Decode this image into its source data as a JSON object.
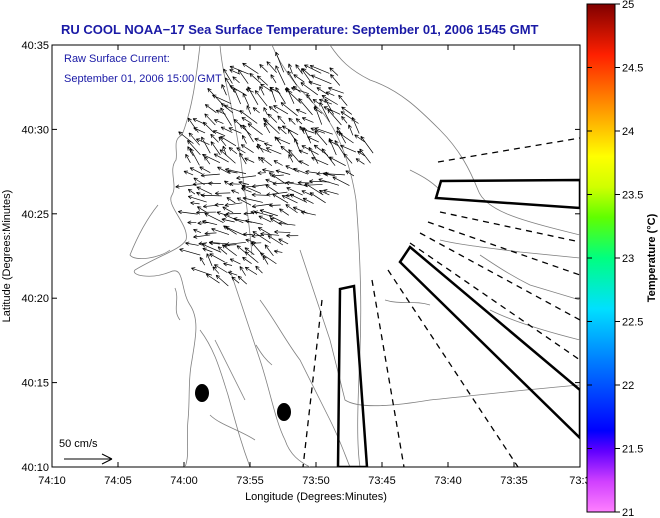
{
  "title": "RU COOL  NOAA−17  Sea Surface Temperature:  September 01, 2006 1545 GMT",
  "current_label": "Raw Surface Current:",
  "current_time": "September 01, 2006 15:00 GMT",
  "scale_label": "50 cm/s",
  "xlabel": "Longitude (Degrees:Minutes)",
  "ylabel": "Latitude (Degrees:Minutes)",
  "xticks": [
    "74:10",
    "74:05",
    "74:00",
    "73:55",
    "73:50",
    "73:45",
    "73:40",
    "73:35",
    "73:3"
  ],
  "yticks": [
    "40:35",
    "40:30",
    "40:25",
    "40:20",
    "40:15",
    "40:10"
  ],
  "colorbar": {
    "label": "Temperature (°C)",
    "ticks": [
      "25",
      "24.5",
      "24",
      "23.5",
      "23",
      "22.5",
      "22",
      "21.5",
      "21"
    ],
    "range": [
      21,
      25
    ]
  },
  "colors": {
    "title": "#1a1aa6",
    "land_contour": "#808080",
    "vectors": "#000000"
  }
}
